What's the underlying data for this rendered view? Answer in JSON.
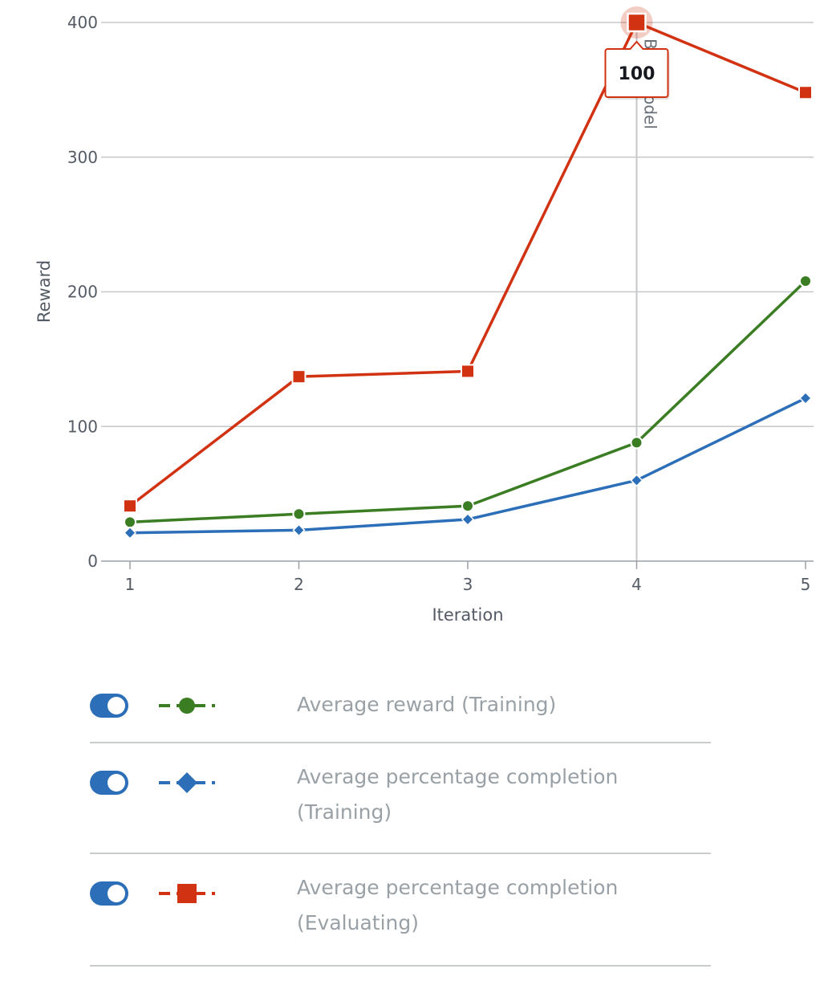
{
  "chart_data": {
    "type": "line",
    "xlabel": "Iteration",
    "ylabel": "Reward",
    "x": [
      1,
      2,
      3,
      4,
      5
    ],
    "xlim": [
      1,
      5
    ],
    "ylim": [
      0,
      400
    ],
    "yticks": [
      0,
      100,
      200,
      300,
      400
    ],
    "grid": true,
    "series": [
      {
        "name": "Average reward (Training)",
        "color": "#3b7d23",
        "marker": "circle",
        "values": [
          29,
          35,
          41,
          88,
          208
        ]
      },
      {
        "name": "Average percentage completion (Training)",
        "color": "#2c6fb8",
        "marker": "diamond",
        "values": [
          21,
          23,
          31,
          60,
          121
        ]
      },
      {
        "name": "Average percentage completion (Evaluating)",
        "color": "#d13212",
        "marker": "square",
        "values": [
          41,
          137,
          141,
          400,
          348
        ]
      }
    ],
    "vertical_marker": {
      "x": 4,
      "label": "Best model"
    },
    "tooltip": {
      "series_index": 2,
      "x": 4,
      "text": "100"
    }
  },
  "legend": {
    "items": [
      {
        "label_line1": "Average reward (Training)",
        "label_line2": "",
        "enabled": true
      },
      {
        "label_line1": "Average percentage completion",
        "label_line2": "(Training)",
        "enabled": true
      },
      {
        "label_line1": "Average percentage completion",
        "label_line2": "(Evaluating)",
        "enabled": true
      }
    ]
  }
}
